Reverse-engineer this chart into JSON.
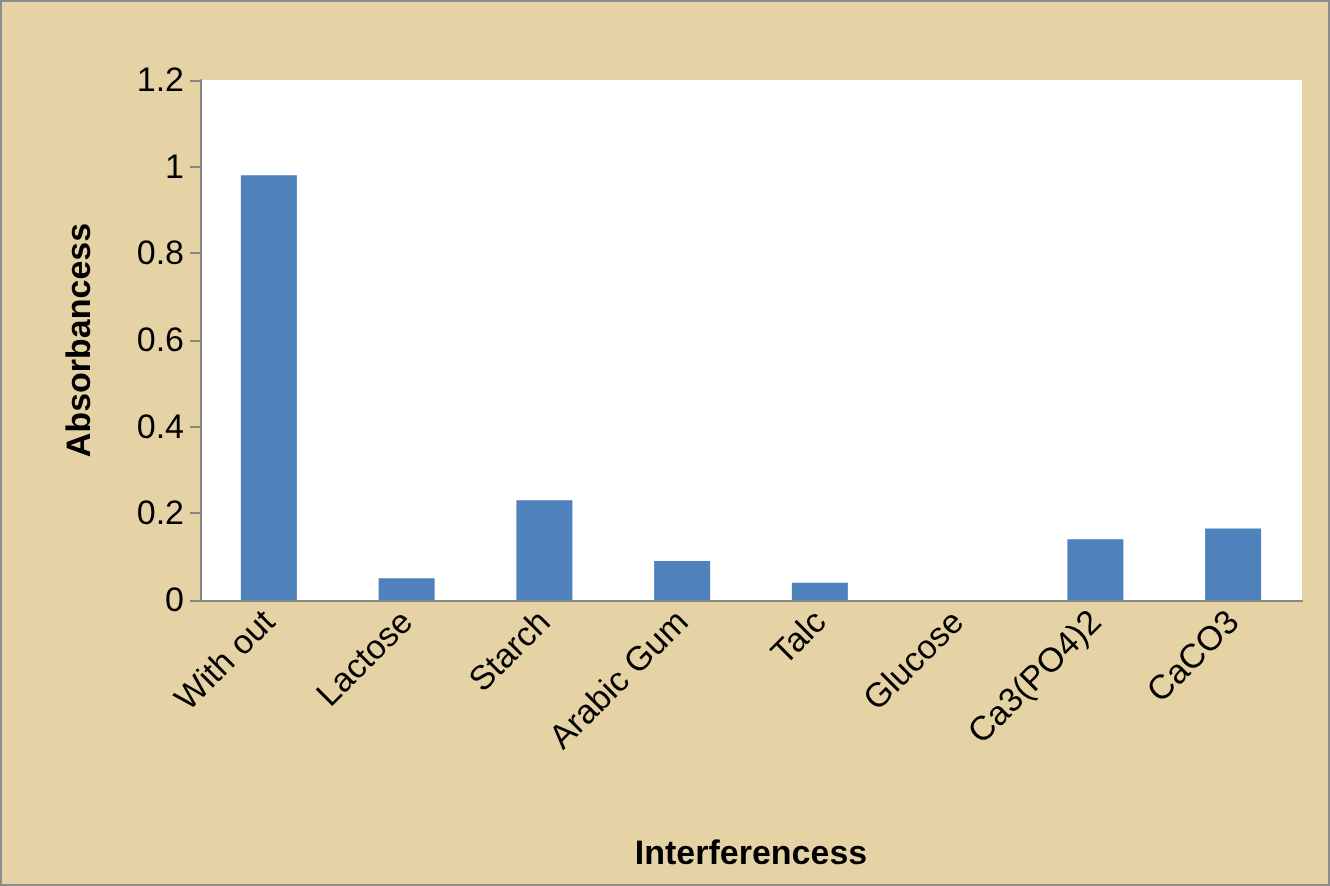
{
  "chart_data": {
    "type": "bar",
    "xlabel": "Interferencess",
    "ylabel": "Absorbancess",
    "categories": [
      "With out",
      "Lactose",
      "Starch",
      "Arabic Gum",
      "Talc",
      "Glucose",
      "Ca3(PO4)2",
      "CaCO3"
    ],
    "values": [
      0.98,
      0.05,
      0.23,
      0.09,
      0.04,
      0,
      0.14,
      0.165
    ],
    "color": "#4f81bd",
    "ylim": [
      0,
      1.2
    ],
    "yticks": [
      0,
      0.2,
      0.4,
      0.6,
      0.8,
      1,
      1.2
    ],
    "grid": false
  }
}
